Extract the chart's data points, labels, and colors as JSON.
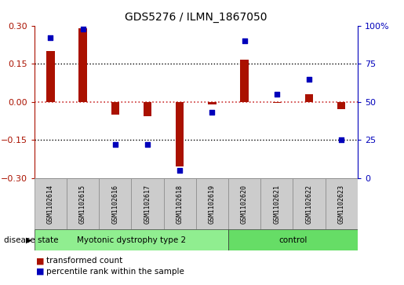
{
  "title": "GDS5276 / ILMN_1867050",
  "samples": [
    "GSM1102614",
    "GSM1102615",
    "GSM1102616",
    "GSM1102617",
    "GSM1102618",
    "GSM1102619",
    "GSM1102620",
    "GSM1102621",
    "GSM1102622",
    "GSM1102623"
  ],
  "transformed_count": [
    0.2,
    0.29,
    -0.05,
    -0.055,
    -0.255,
    -0.01,
    0.165,
    -0.005,
    0.03,
    -0.03
  ],
  "percentile_rank": [
    92,
    98,
    22,
    22,
    5,
    43,
    90,
    55,
    65,
    25
  ],
  "ylim_left": [
    -0.3,
    0.3
  ],
  "ylim_right": [
    0,
    100
  ],
  "yticks_left": [
    -0.3,
    -0.15,
    0.0,
    0.15,
    0.3
  ],
  "yticks_right": [
    0,
    25,
    50,
    75,
    100
  ],
  "bar_color": "#aa1100",
  "dot_color": "#0000bb",
  "disease_groups": [
    {
      "label": "Myotonic dystrophy type 2",
      "start": 0,
      "end": 5,
      "color": "#90ee90"
    },
    {
      "label": "control",
      "start": 6,
      "end": 9,
      "color": "#66dd66"
    }
  ],
  "disease_state_label": "disease state",
  "legend_items": [
    {
      "label": "transformed count",
      "color": "#aa1100"
    },
    {
      "label": "percentile rank within the sample",
      "color": "#0000bb"
    }
  ],
  "background_color": "#ffffff",
  "dotted_line_values": [
    -0.15,
    0.0,
    0.15
  ],
  "zero_line_color": "#cc3333",
  "sample_bg_color": "#cccccc",
  "bar_width": 0.25
}
